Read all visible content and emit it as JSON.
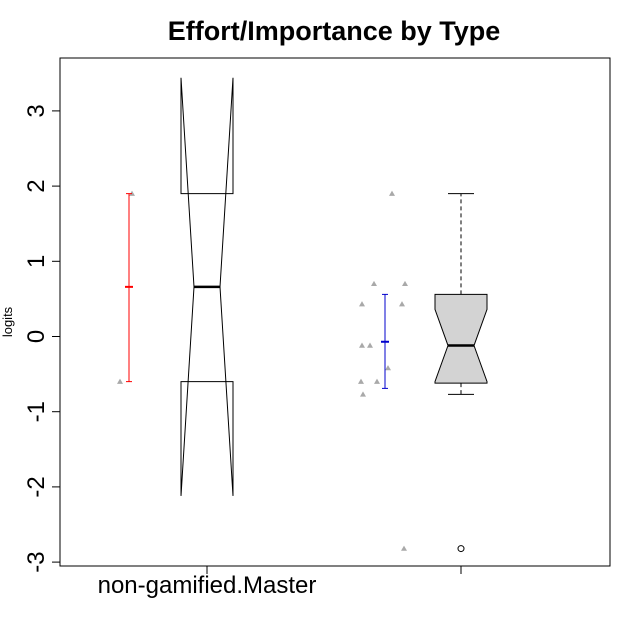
{
  "chart_data": {
    "type": "box",
    "title": "Effort/Importance by Type",
    "xlabel": "",
    "ylabel": "logits",
    "ylim": [
      -3.1,
      3.6
    ],
    "yticks": [
      3,
      2,
      1,
      0,
      -1,
      -2,
      -3
    ],
    "ytick_labels": [
      "3",
      "2",
      "1",
      "0",
      "-1",
      "-2",
      "-3"
    ],
    "categories": [
      "non-gamified.Master",
      ""
    ],
    "groups": [
      {
        "category": "non-gamified.Master",
        "points": [
          -0.6,
          1.9
        ],
        "mean_ci": {
          "mean": 0.66,
          "low": -0.6,
          "high": 1.9,
          "color": "#ff0000"
        },
        "box": {
          "q1": -0.6,
          "median": 0.66,
          "q3": 1.9,
          "whisker_low": -0.6,
          "whisker_high": 1.9,
          "notch_low": -2.12,
          "notch_high": 3.44,
          "fill": "none",
          "outliers": []
        }
      },
      {
        "category": "",
        "points": [
          1.9,
          0.7,
          0.7,
          0.43,
          0.43,
          -0.12,
          -0.12,
          -0.42,
          -0.6,
          -0.6,
          -0.77,
          -2.82
        ],
        "mean_ci": {
          "mean": -0.07,
          "low": -0.69,
          "high": 0.56,
          "color": "#0000cc"
        },
        "box": {
          "q1": -0.62,
          "median": -0.12,
          "q3": 0.56,
          "whisker_low": -0.77,
          "whisker_high": 1.9,
          "notch_low": -0.6,
          "notch_high": 0.36,
          "fill": "#d3d3d3",
          "outliers": [
            -2.82
          ]
        }
      }
    ],
    "colors": {
      "point": "#a9a9a9",
      "box_border": "#000000"
    }
  }
}
